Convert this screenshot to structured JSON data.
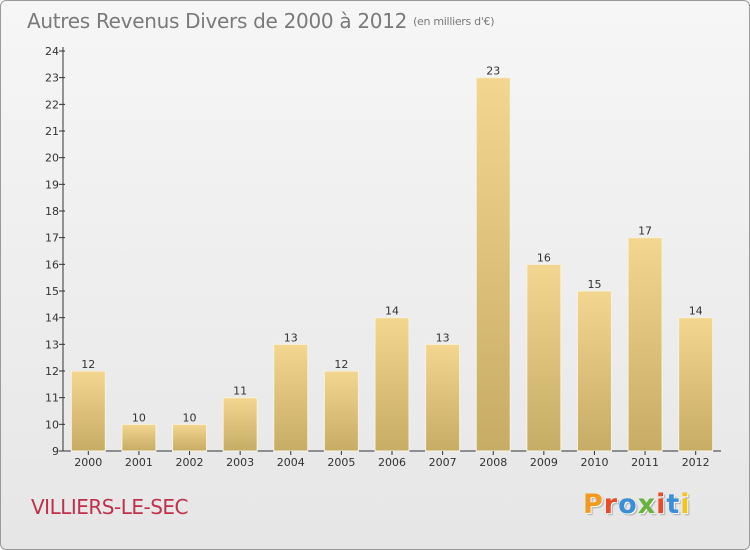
{
  "header": {
    "title": "Autres Revenus Divers de 2000 à 2012",
    "unit": "(en milliers d'€)"
  },
  "footer": {
    "town": "VILLIERS-LE-SEC",
    "brand": "Proxiti",
    "brand_colors": [
      "#f39a1e",
      "#e84b2c",
      "#3a8fd8",
      "#6ab23f",
      "#e84b2c",
      "#3a8fd8",
      "#f2c41c"
    ]
  },
  "colors": {
    "bar_fill_top": "#f3d690",
    "bar_fill_bottom": "#c7ac66",
    "bar_outline": "#f6f2e2",
    "title": "#7a7a7a",
    "town": "#c0304a"
  },
  "chart_data": {
    "type": "bar",
    "categories": [
      "2000",
      "2001",
      "2002",
      "2003",
      "2004",
      "2005",
      "2006",
      "2007",
      "2008",
      "2009",
      "2010",
      "2011",
      "2012"
    ],
    "values": [
      12,
      10,
      10,
      11,
      13,
      12,
      14,
      13,
      23,
      16,
      15,
      17,
      14
    ],
    "ylim": [
      9,
      24
    ],
    "yticks": [
      9,
      10,
      11,
      12,
      13,
      14,
      15,
      16,
      17,
      18,
      19,
      20,
      21,
      22,
      23,
      24
    ],
    "data_labels": true,
    "grid": false,
    "legend": "none"
  }
}
